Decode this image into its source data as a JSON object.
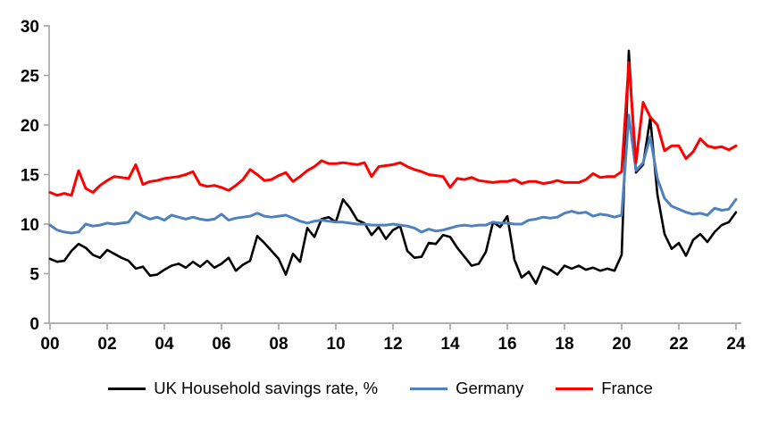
{
  "chart_data": {
    "type": "line",
    "title": "",
    "xlabel": "",
    "ylabel": "",
    "grid": false,
    "legend_position": "bottom",
    "axis_color": "#A6A6A6",
    "text_color": "#000000",
    "x_axis": {
      "tick_labels": [
        "00",
        "02",
        "04",
        "06",
        "08",
        "10",
        "12",
        "14",
        "16",
        "18",
        "20",
        "22",
        "24"
      ],
      "start_year": 2000,
      "frequency": "quarterly"
    },
    "y_axis": {
      "ticks": [
        0,
        5,
        10,
        15,
        20,
        25,
        30
      ],
      "range": [
        0,
        30
      ]
    },
    "series": [
      {
        "name": "UK Household savings rate, %",
        "color": "#000000",
        "width": 2.6,
        "values": [
          6.5,
          6.2,
          6.3,
          7.3,
          8.0,
          7.6,
          6.9,
          6.6,
          7.4,
          7.0,
          6.6,
          6.3,
          5.5,
          5.7,
          4.8,
          4.9,
          5.4,
          5.8,
          6.0,
          5.6,
          6.2,
          5.7,
          6.3,
          5.6,
          6.0,
          6.6,
          5.3,
          5.9,
          6.3,
          8.8,
          8.1,
          7.3,
          6.5,
          4.9,
          7.0,
          6.2,
          9.6,
          8.7,
          10.5,
          10.7,
          10.2,
          12.5,
          11.6,
          10.4,
          10.1,
          8.9,
          9.7,
          8.5,
          9.4,
          9.8,
          7.3,
          6.6,
          6.7,
          8.1,
          8.0,
          8.9,
          8.7,
          7.6,
          6.7,
          5.8,
          6.0,
          7.2,
          10.2,
          9.7,
          10.8,
          6.4,
          4.6,
          5.2,
          4.0,
          5.7,
          5.4,
          4.9,
          5.8,
          5.5,
          5.8,
          5.4,
          5.6,
          5.3,
          5.5,
          5.3,
          6.9,
          27.5,
          15.2,
          16.0,
          20.7,
          13.0,
          9.0,
          7.5,
          8.1,
          6.8,
          8.4,
          9.0,
          8.2,
          9.2,
          9.9,
          10.2,
          11.2
        ]
      },
      {
        "name": "Germany",
        "color": "#4E81BD",
        "width": 3.0,
        "values": [
          9.9,
          9.4,
          9.2,
          9.1,
          9.2,
          10.0,
          9.8,
          9.9,
          10.1,
          10.0,
          10.1,
          10.2,
          11.2,
          10.8,
          10.5,
          10.7,
          10.4,
          10.9,
          10.7,
          10.5,
          10.7,
          10.5,
          10.4,
          10.5,
          11.0,
          10.4,
          10.6,
          10.7,
          10.8,
          11.1,
          10.8,
          10.7,
          10.8,
          10.9,
          10.6,
          10.3,
          10.1,
          10.3,
          10.4,
          10.3,
          10.2,
          10.2,
          10.1,
          10.0,
          10.0,
          9.9,
          9.9,
          9.9,
          10.0,
          9.9,
          9.8,
          9.6,
          9.2,
          9.5,
          9.3,
          9.4,
          9.6,
          9.8,
          9.9,
          9.8,
          9.9,
          9.9,
          10.2,
          10.1,
          10.1,
          10.0,
          10.0,
          10.4,
          10.5,
          10.7,
          10.6,
          10.7,
          11.1,
          11.3,
          11.1,
          11.2,
          10.8,
          11.0,
          10.9,
          10.7,
          10.9,
          21.0,
          15.4,
          16.2,
          18.8,
          14.6,
          12.6,
          11.8,
          11.5,
          11.2,
          11.0,
          11.1,
          10.9,
          11.6,
          11.4,
          11.5,
          12.5
        ]
      },
      {
        "name": "France",
        "color": "#FF0000",
        "width": 3.0,
        "values": [
          13.2,
          12.9,
          13.1,
          12.9,
          15.4,
          13.6,
          13.2,
          13.9,
          14.4,
          14.8,
          14.7,
          14.6,
          16.0,
          14.0,
          14.3,
          14.4,
          14.6,
          14.7,
          14.8,
          15.0,
          15.3,
          14.0,
          13.8,
          13.9,
          13.7,
          13.4,
          13.9,
          14.5,
          15.5,
          15.0,
          14.4,
          14.5,
          14.9,
          15.2,
          14.3,
          14.8,
          15.4,
          15.8,
          16.4,
          16.1,
          16.1,
          16.2,
          16.1,
          16.0,
          16.2,
          14.8,
          15.8,
          15.9,
          16.0,
          16.2,
          15.8,
          15.5,
          15.3,
          15.0,
          14.9,
          14.8,
          13.7,
          14.6,
          14.5,
          14.7,
          14.4,
          14.3,
          14.2,
          14.3,
          14.3,
          14.5,
          14.1,
          14.3,
          14.3,
          14.1,
          14.2,
          14.4,
          14.2,
          14.2,
          14.2,
          14.5,
          15.1,
          14.7,
          14.8,
          14.8,
          15.3,
          26.3,
          16.2,
          22.3,
          20.8,
          20.0,
          17.4,
          17.9,
          17.9,
          16.6,
          17.3,
          18.6,
          17.9,
          17.7,
          17.8,
          17.5,
          17.9
        ]
      }
    ]
  }
}
